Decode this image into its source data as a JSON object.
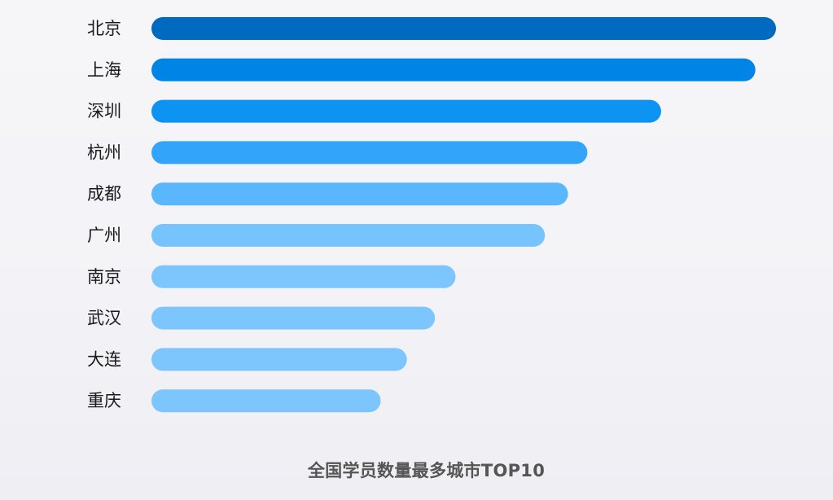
{
  "chart_data": {
    "type": "bar",
    "orientation": "horizontal",
    "title": "全国学员数量最多城市TOP10",
    "categories": [
      "北京",
      "上海",
      "深圳",
      "杭州",
      "成都",
      "广州",
      "南京",
      "武汉",
      "大连",
      "重庆"
    ],
    "values": [
      100,
      96.7,
      81.6,
      69.8,
      66.7,
      63.0,
      48.7,
      45.4,
      40.9,
      36.7
    ],
    "xlim": [
      0,
      100
    ],
    "grid": false,
    "legend": "none",
    "colors": [
      "#0069c0",
      "#0084e6",
      "#0d93f2",
      "#32a4fa",
      "#5ab6fd",
      "#76c3fd",
      "#7cc5fd",
      "#7cc5fd",
      "#7cc5fd",
      "#7cc5fd"
    ]
  }
}
